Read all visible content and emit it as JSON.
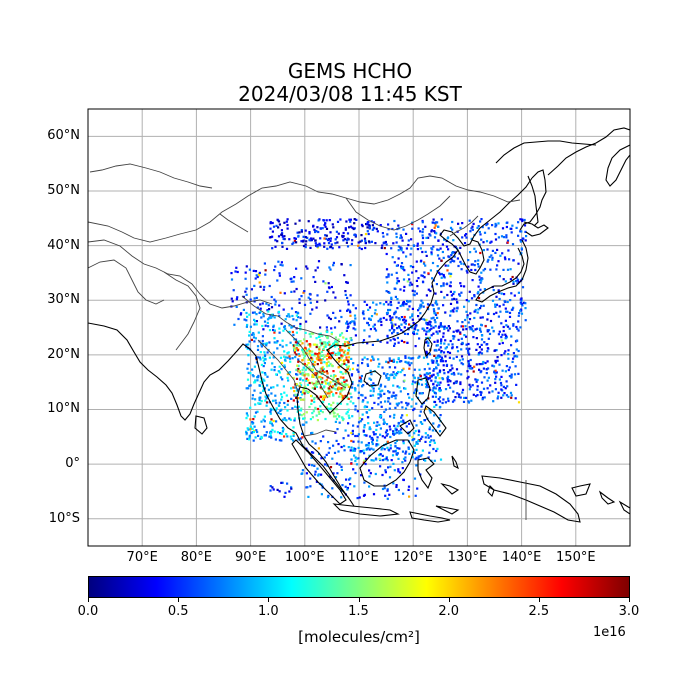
{
  "title": {
    "line1": "GEMS HCHO",
    "line2": "2024/03/08 11:45 KST"
  },
  "map": {
    "projection": "plate-carree",
    "lon_range": [
      60,
      160
    ],
    "lat_range": [
      -15,
      65
    ],
    "lat_labels": [
      "60°N",
      "50°N",
      "40°N",
      "30°N",
      "20°N",
      "10°N",
      "0°",
      "10°S"
    ],
    "lat_values": [
      60,
      50,
      40,
      30,
      20,
      10,
      0,
      -10
    ],
    "lon_labels": [
      "70°E",
      "80°E",
      "90°E",
      "100°E",
      "110°E",
      "120°E",
      "130°E",
      "140°E",
      "150°E"
    ],
    "lon_values": [
      70,
      80,
      90,
      100,
      110,
      120,
      130,
      140,
      150
    ],
    "grid": true,
    "coastline_color": "#000000",
    "border_color": "#555555"
  },
  "colorbar": {
    "colormap": "jet",
    "min": 0.0,
    "max": 3.0,
    "tick_labels": [
      "0.0",
      "0.5",
      "1.0",
      "1.5",
      "2.0",
      "2.5",
      "3.0"
    ],
    "tick_values": [
      0.0,
      0.5,
      1.0,
      1.5,
      2.0,
      2.5,
      3.0
    ],
    "exponent_label": "1e16",
    "unit_label": "[molecules/cm²]"
  }
}
